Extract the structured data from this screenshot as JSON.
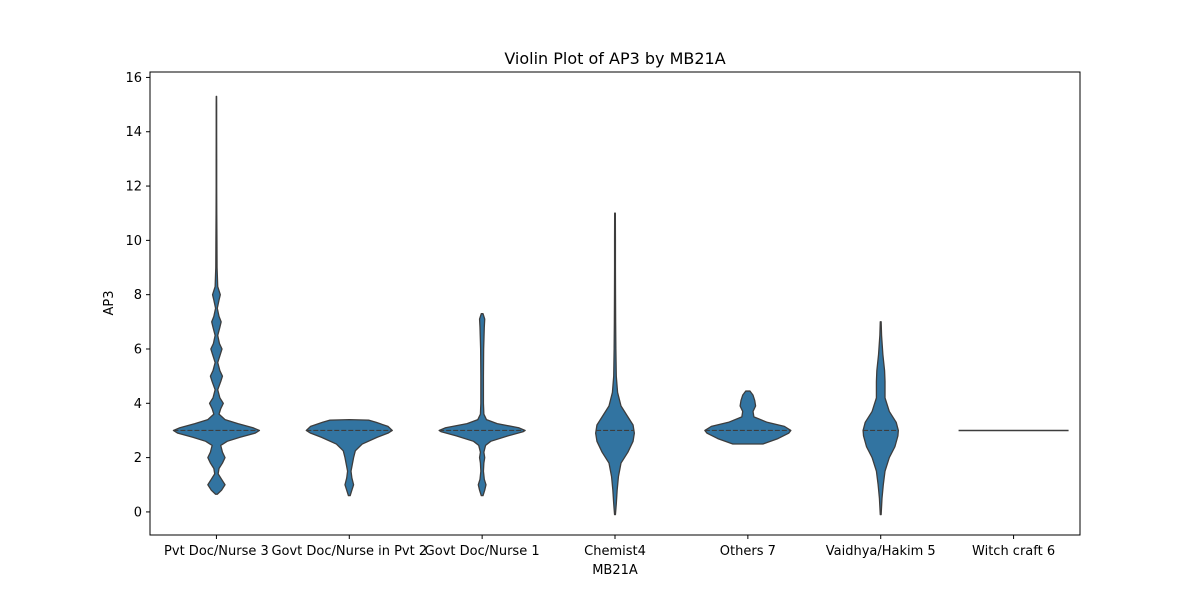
{
  "chart_data": {
    "type": "violin",
    "title": "Violin Plot of AP3 by MB21A",
    "xlabel": "MB21A",
    "ylabel": "AP3",
    "ylim": [
      -0.85,
      16.2
    ],
    "yticks": [
      0,
      2,
      4,
      6,
      8,
      10,
      12,
      14,
      16
    ],
    "grid": false,
    "legend": "none",
    "fill_color": "#3274a1",
    "edge_color": "#3d3d3d",
    "categories": [
      "Pvt Doc/Nurse 3",
      "Govt Doc/Nurse in Pvt 2",
      "Govt Doc/Nurse 1",
      "Chemist4",
      "Others 7",
      "Vaidhya/Hakim 5",
      "Witch craft 6"
    ],
    "series": [
      {
        "category": "Pvt Doc/Nurse 3",
        "median": 3,
        "quartiles": [
          3,
          3
        ],
        "profile": [
          [
            0.65,
            0.02
          ],
          [
            0.8,
            0.12
          ],
          [
            1.0,
            0.2
          ],
          [
            1.2,
            0.12
          ],
          [
            1.4,
            0.04
          ],
          [
            1.6,
            0.06
          ],
          [
            1.8,
            0.14
          ],
          [
            2.0,
            0.2
          ],
          [
            2.2,
            0.14
          ],
          [
            2.45,
            0.1
          ],
          [
            2.6,
            0.25
          ],
          [
            2.75,
            0.55
          ],
          [
            2.9,
            0.9
          ],
          [
            3.0,
            1.0
          ],
          [
            3.1,
            0.85
          ],
          [
            3.25,
            0.5
          ],
          [
            3.4,
            0.2
          ],
          [
            3.6,
            0.06
          ],
          [
            3.8,
            0.1
          ],
          [
            4.0,
            0.16
          ],
          [
            4.2,
            0.08
          ],
          [
            4.5,
            0.03
          ],
          [
            4.8,
            0.1
          ],
          [
            5.0,
            0.14
          ],
          [
            5.2,
            0.08
          ],
          [
            5.5,
            0.03
          ],
          [
            5.8,
            0.09
          ],
          [
            6.0,
            0.13
          ],
          [
            6.2,
            0.07
          ],
          [
            6.5,
            0.03
          ],
          [
            6.8,
            0.08
          ],
          [
            7.0,
            0.11
          ],
          [
            7.2,
            0.06
          ],
          [
            7.5,
            0.02
          ],
          [
            7.8,
            0.06
          ],
          [
            8.0,
            0.09
          ],
          [
            8.3,
            0.03
          ],
          [
            9.0,
            0.015
          ],
          [
            10.0,
            0.012
          ],
          [
            11.0,
            0.008
          ],
          [
            12.0,
            0.006
          ],
          [
            13.0,
            0.006
          ],
          [
            14.0,
            0.005
          ],
          [
            15.0,
            0.005
          ],
          [
            15.3,
            0.004
          ]
        ]
      },
      {
        "category": "Govt Doc/Nurse in Pvt 2",
        "median": 3,
        "quartiles": [
          3,
          3
        ],
        "profile": [
          [
            0.6,
            0.02
          ],
          [
            0.8,
            0.06
          ],
          [
            1.0,
            0.1
          ],
          [
            1.25,
            0.06
          ],
          [
            1.5,
            0.04
          ],
          [
            1.75,
            0.07
          ],
          [
            2.0,
            0.1
          ],
          [
            2.25,
            0.14
          ],
          [
            2.5,
            0.3
          ],
          [
            2.75,
            0.65
          ],
          [
            2.9,
            0.9
          ],
          [
            3.0,
            1.0
          ],
          [
            3.15,
            0.9
          ],
          [
            3.3,
            0.62
          ],
          [
            3.38,
            0.45
          ],
          [
            3.4,
            0.0
          ]
        ]
      },
      {
        "category": "Govt Doc/Nurse 1",
        "median": 3,
        "quartiles": [
          3,
          3
        ],
        "profile": [
          [
            0.6,
            0.02
          ],
          [
            0.8,
            0.06
          ],
          [
            1.0,
            0.09
          ],
          [
            1.2,
            0.05
          ],
          [
            1.5,
            0.03
          ],
          [
            1.8,
            0.04
          ],
          [
            2.0,
            0.06
          ],
          [
            2.2,
            0.04
          ],
          [
            2.45,
            0.08
          ],
          [
            2.6,
            0.2
          ],
          [
            2.8,
            0.6
          ],
          [
            2.95,
            0.95
          ],
          [
            3.0,
            1.0
          ],
          [
            3.1,
            0.85
          ],
          [
            3.25,
            0.35
          ],
          [
            3.4,
            0.1
          ],
          [
            3.6,
            0.04
          ],
          [
            4.0,
            0.03
          ],
          [
            5.0,
            0.03
          ],
          [
            6.0,
            0.035
          ],
          [
            6.8,
            0.05
          ],
          [
            7.1,
            0.06
          ],
          [
            7.3,
            0.02
          ]
        ]
      },
      {
        "category": "Chemist4",
        "median": 3,
        "quartiles": [
          3,
          3
        ],
        "profile": [
          [
            -0.1,
            0.01
          ],
          [
            0.3,
            0.03
          ],
          [
            0.8,
            0.05
          ],
          [
            1.3,
            0.08
          ],
          [
            1.8,
            0.14
          ],
          [
            2.2,
            0.3
          ],
          [
            2.6,
            0.42
          ],
          [
            2.9,
            0.45
          ],
          [
            3.2,
            0.42
          ],
          [
            3.5,
            0.3
          ],
          [
            3.9,
            0.14
          ],
          [
            4.4,
            0.06
          ],
          [
            5.0,
            0.03
          ],
          [
            6.0,
            0.02
          ],
          [
            7.0,
            0.015
          ],
          [
            8.0,
            0.012
          ],
          [
            9.0,
            0.01
          ],
          [
            10.0,
            0.01
          ],
          [
            11.0,
            0.008
          ]
        ]
      },
      {
        "category": "Others 7",
        "median": 3,
        "quartiles": [
          3,
          3
        ],
        "profile": [
          [
            2.5,
            0.35
          ],
          [
            2.7,
            0.7
          ],
          [
            2.9,
            0.95
          ],
          [
            3.0,
            1.0
          ],
          [
            3.15,
            0.85
          ],
          [
            3.3,
            0.45
          ],
          [
            3.5,
            0.14
          ],
          [
            3.7,
            0.12
          ],
          [
            3.9,
            0.18
          ],
          [
            4.1,
            0.16
          ],
          [
            4.3,
            0.12
          ],
          [
            4.45,
            0.05
          ]
        ]
      },
      {
        "category": "Vaidhya/Hakim 5",
        "median": 3,
        "quartiles": [
          3,
          3
        ],
        "profile": [
          [
            -0.1,
            0.01
          ],
          [
            0.5,
            0.03
          ],
          [
            1.0,
            0.06
          ],
          [
            1.5,
            0.1
          ],
          [
            2.0,
            0.2
          ],
          [
            2.4,
            0.33
          ],
          [
            2.8,
            0.4
          ],
          [
            3.0,
            0.41
          ],
          [
            3.3,
            0.36
          ],
          [
            3.7,
            0.2
          ],
          [
            4.2,
            0.1
          ],
          [
            4.8,
            0.1
          ],
          [
            5.2,
            0.09
          ],
          [
            5.8,
            0.05
          ],
          [
            6.5,
            0.02
          ],
          [
            7.0,
            0.01
          ]
        ]
      },
      {
        "category": "Witch craft 6",
        "median": 3,
        "quartiles": [
          3,
          3
        ],
        "profile": []
      }
    ]
  }
}
